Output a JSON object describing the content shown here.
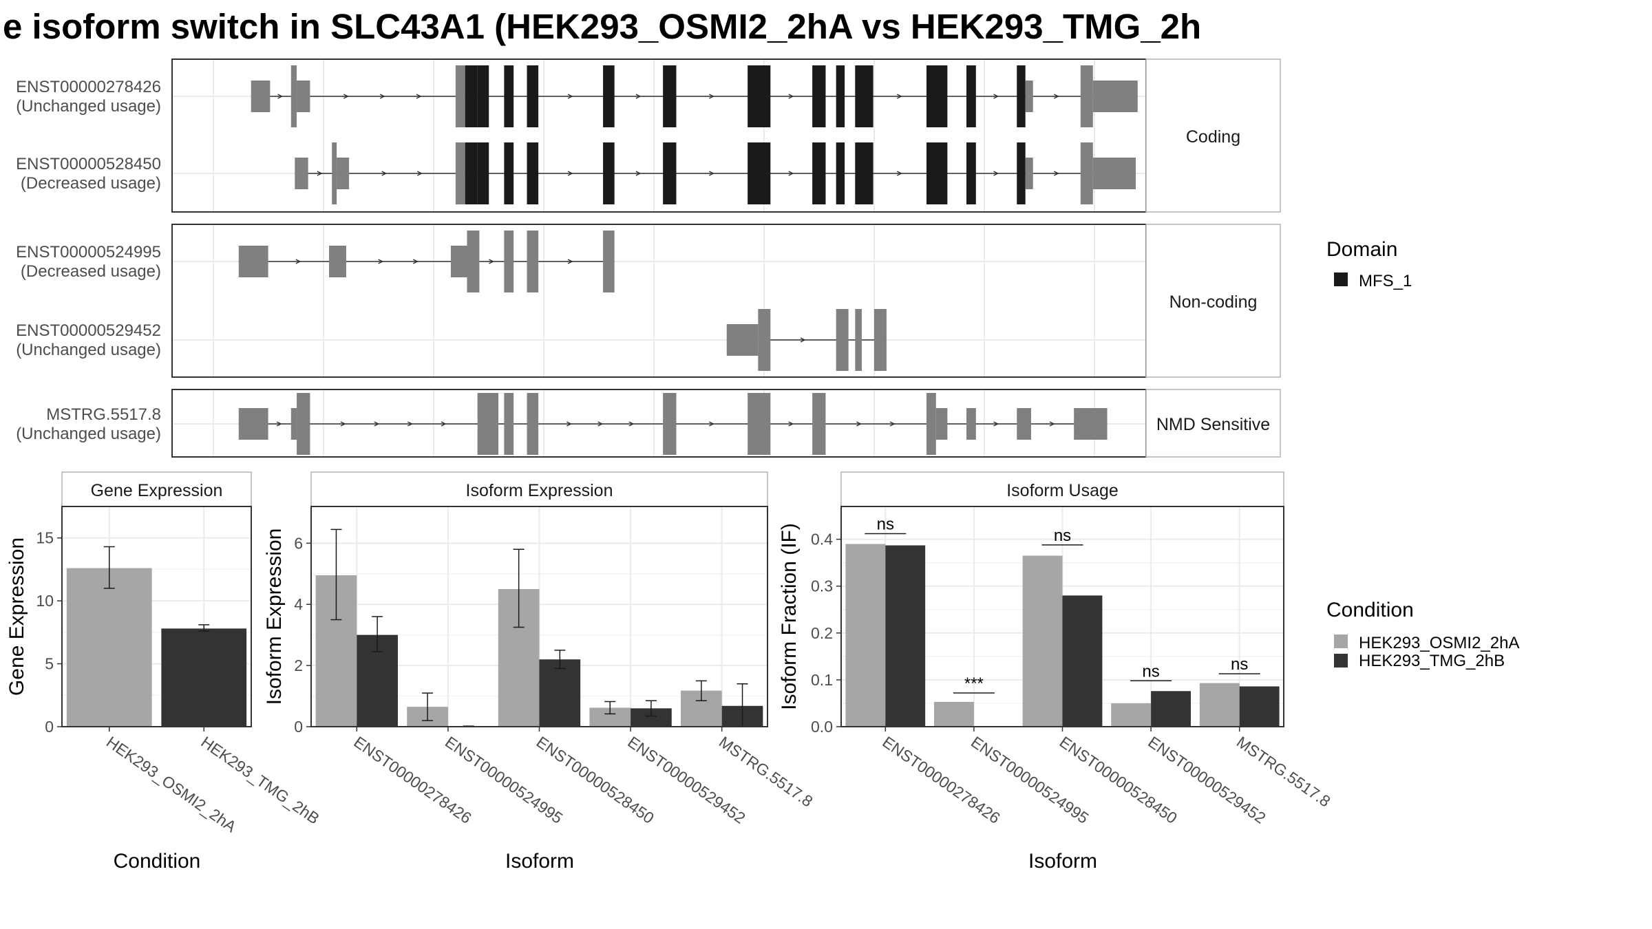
{
  "title": "e isoform switch in SLC43A1 (HEK293_OSMI2_2hA vs HEK293_TMG_2h",
  "colors": {
    "exon": "#808080",
    "domain": "#1a1a1a",
    "cond_a": "#a6a6a6",
    "cond_b": "#333333",
    "strip_bg": "#ffffff",
    "grid": "#ebebeb"
  },
  "structure": {
    "x_range": [
      0,
      1000
    ],
    "groups": [
      {
        "label": "Coding",
        "transcripts": [
          {
            "id": "ENST00000278426",
            "usage": "(Unchanged usage)",
            "exons": [
              [
                70,
                90
              ],
              [
                112,
                118
              ],
              [
                118,
                132
              ],
              [
                285,
                295
              ],
              [
                295,
                308
              ],
              [
                308,
                320
              ],
              [
                336,
                346
              ],
              [
                360,
                372
              ],
              [
                440,
                452
              ],
              [
                503,
                517
              ],
              [
                592,
                616
              ],
              [
                660,
                674
              ],
              [
                685,
                694
              ],
              [
                705,
                724
              ],
              [
                780,
                802
              ],
              [
                822,
                832
              ],
              [
                875,
                884
              ],
              [
                884,
                892
              ],
              [
                942,
                955
              ],
              [
                955,
                1002
              ]
            ],
            "thick": [
              [
                112,
                118
              ],
              [
                285,
                295
              ],
              [
                942,
                955
              ]
            ],
            "domain": [
              [
                295,
                308
              ],
              [
                308,
                320
              ],
              [
                336,
                346
              ],
              [
                360,
                372
              ],
              [
                440,
                452
              ],
              [
                503,
                517
              ],
              [
                592,
                616
              ],
              [
                660,
                674
              ],
              [
                685,
                694
              ],
              [
                705,
                724
              ],
              [
                780,
                802
              ],
              [
                822,
                832
              ],
              [
                875,
                884
              ]
            ]
          },
          {
            "id": "ENST00000528450",
            "usage": "(Decreased usage)",
            "exons": [
              [
                116,
                130
              ],
              [
                155,
                160
              ],
              [
                160,
                173
              ],
              [
                285,
                295
              ],
              [
                295,
                308
              ],
              [
                308,
                320
              ],
              [
                336,
                346
              ],
              [
                360,
                372
              ],
              [
                440,
                452
              ],
              [
                503,
                517
              ],
              [
                592,
                616
              ],
              [
                660,
                674
              ],
              [
                685,
                694
              ],
              [
                705,
                724
              ],
              [
                780,
                802
              ],
              [
                822,
                832
              ],
              [
                875,
                884
              ],
              [
                884,
                892
              ],
              [
                942,
                955
              ],
              [
                955,
                1000
              ]
            ],
            "thick": [
              [
                155,
                160
              ],
              [
                285,
                295
              ],
              [
                942,
                955
              ]
            ],
            "domain": [
              [
                295,
                308
              ],
              [
                308,
                320
              ],
              [
                336,
                346
              ],
              [
                360,
                372
              ],
              [
                440,
                452
              ],
              [
                503,
                517
              ],
              [
                592,
                616
              ],
              [
                660,
                674
              ],
              [
                685,
                694
              ],
              [
                705,
                724
              ],
              [
                780,
                802
              ],
              [
                822,
                832
              ],
              [
                875,
                884
              ]
            ]
          }
        ]
      },
      {
        "label": "Non-coding",
        "transcripts": [
          {
            "id": "ENST00000524995",
            "usage": "(Decreased usage)",
            "exons": [
              [
                57,
                88
              ],
              [
                152,
                170
              ],
              [
                280,
                297
              ],
              [
                297,
                310
              ],
              [
                336,
                346
              ],
              [
                360,
                372
              ],
              [
                440,
                452
              ]
            ],
            "thick": [
              [
                297,
                310
              ],
              [
                336,
                346
              ],
              [
                360,
                372
              ],
              [
                440,
                452
              ]
            ],
            "domain": []
          },
          {
            "id": "ENST00000529452",
            "usage": "(Unchanged usage)",
            "exons": [
              [
                570,
                603
              ],
              [
                603,
                616
              ],
              [
                685,
                698
              ],
              [
                705,
                712
              ],
              [
                725,
                738
              ]
            ],
            "thick": [
              [
                603,
                616
              ],
              [
                685,
                698
              ],
              [
                705,
                712
              ],
              [
                725,
                738
              ]
            ],
            "domain": []
          }
        ]
      },
      {
        "label": "NMD Sensitive",
        "transcripts": [
          {
            "id": "MSTRG.5517.8",
            "usage": "(Unchanged usage)",
            "exons": [
              [
                57,
                88
              ],
              [
                112,
                118
              ],
              [
                118,
                132
              ],
              [
                308,
                330
              ],
              [
                336,
                346
              ],
              [
                360,
                372
              ],
              [
                503,
                517
              ],
              [
                592,
                616
              ],
              [
                660,
                674
              ],
              [
                780,
                790
              ],
              [
                790,
                802
              ],
              [
                822,
                832
              ],
              [
                875,
                890
              ],
              [
                935,
                970
              ]
            ],
            "thick": [
              [
                118,
                132
              ],
              [
                308,
                330
              ],
              [
                336,
                346
              ],
              [
                360,
                372
              ],
              [
                503,
                517
              ],
              [
                592,
                616
              ],
              [
                660,
                674
              ],
              [
                780,
                790
              ]
            ],
            "domain": []
          }
        ]
      }
    ]
  },
  "legends": {
    "domain_title": "Domain",
    "domain_items": [
      "MFS_1"
    ],
    "condition_title": "Condition",
    "condition_items": [
      "HEK293_OSMI2_2hA",
      "HEK293_TMG_2hB"
    ]
  },
  "chart_data": [
    {
      "type": "bar",
      "title": "Gene Expression",
      "xlabel": "Condition",
      "ylabel": "Gene Expression",
      "ylim": [
        0,
        17.5
      ],
      "yticks": [
        0,
        5,
        10,
        15
      ],
      "categories": [
        "HEK293_OSMI2_2hA",
        "HEK293_TMG_2hB"
      ],
      "series": [
        {
          "values": [
            12.6,
            7.8
          ],
          "errors": [
            [
              11.0,
              14.3
            ],
            [
              7.6,
              8.1
            ]
          ],
          "colors": [
            "#a6a6a6",
            "#333333"
          ]
        }
      ]
    },
    {
      "type": "bar",
      "title": "Isoform Expression",
      "xlabel": "Isoform",
      "ylabel": "Isoform Expression",
      "ylim": [
        0,
        7.2
      ],
      "yticks": [
        0,
        2,
        4,
        6
      ],
      "categories": [
        "ENST00000278426",
        "ENST00000524995",
        "ENST00000528450",
        "ENST00000529452",
        "MSTRG.5517.8"
      ],
      "series": [
        {
          "name": "HEK293_OSMI2_2hA",
          "values": [
            4.95,
            0.65,
            4.5,
            0.62,
            1.18
          ],
          "errors": [
            [
              3.5,
              6.45
            ],
            [
              0.2,
              1.1
            ],
            [
              3.25,
              5.8
            ],
            [
              0.42,
              0.82
            ],
            [
              0.85,
              1.5
            ]
          ]
        },
        {
          "name": "HEK293_TMG_2hB",
          "values": [
            3.0,
            0.0,
            2.2,
            0.6,
            0.68
          ],
          "errors": [
            [
              2.45,
              3.6
            ],
            [
              0.0,
              0.02
            ],
            [
              1.9,
              2.5
            ],
            [
              0.35,
              0.85
            ],
            [
              0.0,
              1.4
            ]
          ]
        }
      ]
    },
    {
      "type": "bar",
      "title": "Isoform Usage",
      "xlabel": "Isoform",
      "ylabel": "Isoform Fraction (IF)",
      "ylim": [
        0,
        0.47
      ],
      "yticks": [
        0.0,
        0.1,
        0.2,
        0.3,
        0.4
      ],
      "ytick_labels": [
        "0.0",
        "0.1",
        "0.2",
        "0.3",
        "0.4"
      ],
      "categories": [
        "ENST00000278426",
        "ENST00000524995",
        "ENST00000528450",
        "ENST00000529452",
        "MSTRG.5517.8"
      ],
      "series": [
        {
          "name": "HEK293_OSMI2_2hA",
          "values": [
            0.39,
            0.053,
            0.365,
            0.05,
            0.093
          ]
        },
        {
          "name": "HEK293_TMG_2hB",
          "values": [
            0.387,
            0.0,
            0.28,
            0.076,
            0.086
          ]
        }
      ],
      "annotations": [
        "ns",
        "***",
        "ns",
        "ns",
        "ns"
      ],
      "annotation_y": [
        0.412,
        0.072,
        0.388,
        0.098,
        0.113
      ]
    }
  ]
}
